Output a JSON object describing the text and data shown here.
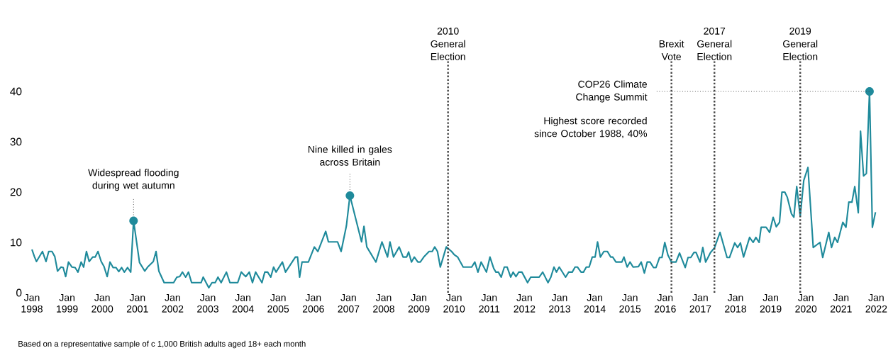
{
  "chart_data": {
    "type": "line",
    "x": [
      "1998-01-01",
      "1998-01-26",
      "1998-02-17",
      "1998-04-19",
      "1998-05-25",
      "1998-06-23",
      "1998-07-26",
      "1998-08-25",
      "1998-09-23",
      "1998-10-29",
      "1998-11-21",
      "1998-12-16",
      "1999-01-15",
      "1999-02-21",
      "1999-03-23",
      "1999-04-22",
      "1999-05-25",
      "1999-06-20",
      "1999-07-19",
      "1999-08-17",
      "1999-09-23",
      "1999-10-19",
      "1999-11-17",
      "1999-12-20",
      "2000-01-19",
      "2000-02-21",
      "2000-03-20",
      "2000-04-22",
      "2000-05-21",
      "2000-06-20",
      "2000-07-19",
      "2000-08-17",
      "2000-09-20",
      "2000-10-22",
      "2000-11-21",
      "2001-01-22",
      "2001-03-16",
      "2001-04-15",
      "2001-06-13",
      "2001-07-11",
      "2001-08-10",
      "2001-10-04",
      "2002-01-11",
      "2002-02-14",
      "2002-03-13",
      "2002-04-11",
      "2002-05-14",
      "2002-06-13",
      "2002-07-15",
      "2002-10-22",
      "2002-11-14",
      "2003-01-11",
      "2003-02-14",
      "2003-03-16",
      "2003-04-15",
      "2003-05-17",
      "2003-07-11",
      "2003-08-17",
      "2003-11-07",
      "2003-12-13",
      "2004-01-29",
      "2004-03-05",
      "2004-04-08",
      "2004-05-10",
      "2004-07-15",
      "2004-08-14",
      "2004-09-13",
      "2004-10-15",
      "2004-11-14",
      "2004-12-09",
      "2005-02-14",
      "2005-03-16",
      "2005-06-27",
      "2005-07-19",
      "2005-08-10",
      "2005-09-05",
      "2005-11-10",
      "2006-01-11",
      "2006-02-17",
      "2006-05-07",
      "2006-06-05",
      "2006-09-09",
      "2006-10-15",
      "2006-12-09",
      "2007-01-15",
      "2007-05-14",
      "2007-06-09",
      "2007-07-08",
      "2007-10-11",
      "2007-12-13",
      "2008-02-10",
      "2008-03-05",
      "2008-04-11",
      "2008-06-09",
      "2008-07-19",
      "2008-08-25",
      "2008-09-16",
      "2008-10-15",
      "2008-11-14",
      "2008-12-20",
      "2009-01-15",
      "2009-02-21",
      "2009-04-15",
      "2009-05-17",
      "2009-06-13",
      "2009-07-11",
      "2009-08-10",
      "2009-10-11",
      "2009-12-05",
      "2010-01-01",
      "2010-02-07",
      "2010-04-04",
      "2010-07-01",
      "2010-08-03",
      "2010-09-05",
      "2010-10-08",
      "2010-12-02",
      "2011-01-08",
      "2011-02-17",
      "2011-03-09",
      "2011-04-04",
      "2011-05-03",
      "2011-06-05",
      "2011-07-04",
      "2011-08-10",
      "2011-09-05",
      "2011-10-04",
      "2011-11-03",
      "2011-12-05",
      "2012-02-03",
      "2012-03-05",
      "2012-06-02",
      "2012-07-08",
      "2012-09-02",
      "2012-10-01",
      "2012-11-03",
      "2012-11-28",
      "2012-12-27",
      "2013-03-02",
      "2013-04-04",
      "2013-05-10",
      "2013-06-09",
      "2013-07-04",
      "2013-08-10",
      "2013-09-05",
      "2013-10-04",
      "2013-11-03",
      "2013-12-05",
      "2014-01-04",
      "2014-01-29",
      "2014-02-28",
      "2014-04-04",
      "2014-05-10",
      "2014-06-13",
      "2014-07-04",
      "2014-08-07",
      "2014-10-08",
      "2014-10-29",
      "2014-12-02",
      "2015-01-01",
      "2015-02-03",
      "2015-03-27",
      "2015-04-26",
      "2015-05-28",
      "2015-06-27",
      "2015-07-26",
      "2015-09-02",
      "2015-09-27",
      "2015-11-03",
      "2015-11-28",
      "2015-12-27",
      "2016-01-29",
      "2016-03-05",
      "2016-04-22",
      "2016-05-28",
      "2016-07-26",
      "2016-08-25",
      "2016-09-23",
      "2016-10-26",
      "2016-11-17",
      "2016-12-27",
      "2017-01-26",
      "2017-02-25",
      "2017-04-15",
      "2017-05-25",
      "2017-07-22",
      "2017-10-04",
      "2017-10-29",
      "2017-12-23",
      "2018-01-22",
      "2018-02-21",
      "2018-03-23",
      "2018-05-25",
      "2018-07-01",
      "2018-07-29",
      "2018-09-02",
      "2018-09-23",
      "2018-11-14",
      "2018-12-20",
      "2019-01-26",
      "2019-02-28",
      "2019-04-01",
      "2019-04-26",
      "2019-05-25",
      "2019-06-20",
      "2019-08-03",
      "2019-08-28",
      "2019-09-27",
      "2019-11-03",
      "2019-12-09",
      "2020-01-22",
      "2020-03-16",
      "2020-05-25",
      "2020-06-23",
      "2020-08-25",
      "2020-09-23",
      "2020-10-26",
      "2020-11-25",
      "2021-01-19",
      "2021-02-21",
      "2021-03-20",
      "2021-04-22",
      "2021-05-21",
      "2021-06-27",
      "2021-07-20",
      "2021-08-21",
      "2021-09-20",
      "2021-10-22",
      "2021-11-21",
      "2021-12-23"
    ],
    "series": [
      {
        "color": "#1f8a9b",
        "values": [
          8.6,
          7.2,
          6.2,
          8.2,
          6.2,
          8.2,
          8.2,
          7.2,
          4.3,
          5.1,
          5,
          3.2,
          6.1,
          5.1,
          5,
          4.1,
          6.1,
          5.1,
          8.2,
          6.2,
          7.1,
          7.1,
          8.2,
          6.2,
          5.2,
          3.2,
          6.1,
          5,
          5,
          4.2,
          5,
          4.1,
          5,
          4.1,
          14.3,
          6,
          4.3,
          5.1,
          6.2,
          8.2,
          4.3,
          2,
          2,
          3.1,
          3.2,
          4.1,
          3.1,
          4.1,
          2,
          2,
          3.1,
          1,
          2,
          2,
          3.1,
          2,
          4.1,
          2,
          2,
          4.1,
          3.2,
          4.1,
          2,
          4.1,
          2,
          4.1,
          4.1,
          3.1,
          5.1,
          4.1,
          6.1,
          4.1,
          7.1,
          7.1,
          3.1,
          6.1,
          6.1,
          9.1,
          8.2,
          12.2,
          10.1,
          10.1,
          8.2,
          13.3,
          19.3,
          10.1,
          13.2,
          9.1,
          6.1,
          10.1,
          7.1,
          10.1,
          7.1,
          9.1,
          7.1,
          7.1,
          8.1,
          6.1,
          7.1,
          6.1,
          6.1,
          7.1,
          8.2,
          8.2,
          9.1,
          8.2,
          5.1,
          9.1,
          8.2,
          7.6,
          7.1,
          5.1,
          5.1,
          6.1,
          4.1,
          6.1,
          4.1,
          7.1,
          4.8,
          4.1,
          4.1,
          3.1,
          5.1,
          5.1,
          3.1,
          4.1,
          3.2,
          4.1,
          4.1,
          2,
          3.1,
          3.1,
          4.1,
          2,
          3.1,
          5.1,
          4.1,
          5.1,
          3.1,
          4.1,
          4.1,
          5.1,
          5.1,
          4.1,
          4.1,
          5.1,
          5.1,
          7.1,
          7.1,
          10.1,
          7.1,
          8.2,
          8.2,
          7.1,
          7.1,
          6.1,
          6.1,
          7.1,
          5.1,
          6.1,
          5.1,
          5.2,
          6.1,
          3.9,
          6.1,
          6.1,
          5,
          5,
          7,
          7,
          10,
          7.5,
          6.1,
          6.1,
          7.9,
          5,
          7,
          7,
          8,
          8,
          6.1,
          9,
          6.1,
          8,
          8.9,
          12,
          7,
          7,
          9.9,
          9,
          9.9,
          7.1,
          11,
          10,
          11,
          10,
          13,
          13,
          12,
          15,
          13.1,
          14,
          20,
          20,
          19,
          15.7,
          15,
          21.1,
          15.2,
          22.3,
          24.9,
          9,
          10,
          7,
          12,
          9,
          11,
          10,
          14,
          13,
          18,
          18,
          21.1,
          15.9,
          32.1,
          23.2,
          23.7,
          40,
          13,
          16
        ]
      }
    ],
    "xlim": [
      "1998-01-01",
      "2022-01-01"
    ],
    "ylim": [
      0,
      46
    ],
    "xticks": [
      {
        "value": "1998-01",
        "label": "Jan 1998"
      },
      {
        "value": "1999-01",
        "label": "Jan 1999"
      },
      {
        "value": "2000-01",
        "label": "Jan 2000"
      },
      {
        "value": "2001-01",
        "label": "Jan 2001"
      },
      {
        "value": "2002-01",
        "label": "Jan 2002"
      },
      {
        "value": "2003-01",
        "label": "Jan 2003"
      },
      {
        "value": "2004-01",
        "label": "Jan 2004"
      },
      {
        "value": "2005-01",
        "label": "Jan 2005"
      },
      {
        "value": "2006-01",
        "label": "Jan 2006"
      },
      {
        "value": "2007-01",
        "label": "Jan 2007"
      },
      {
        "value": "2008-01",
        "label": "Jan 2008"
      },
      {
        "value": "2009-01",
        "label": "Jan 2009"
      },
      {
        "value": "2010-01",
        "label": "Jan 2010"
      },
      {
        "value": "2011-01",
        "label": "Jan 2011"
      },
      {
        "value": "2012-01",
        "label": "Jan 2012"
      },
      {
        "value": "2013-01",
        "label": "Jan 2013"
      },
      {
        "value": "2014-01",
        "label": "Jan 2014"
      },
      {
        "value": "2015-01",
        "label": "Jan 2015"
      },
      {
        "value": "2016-01",
        "label": "Jan 2016"
      },
      {
        "value": "2017-01",
        "label": "Jan 2017"
      },
      {
        "value": "2018-01",
        "label": "Jan 2018"
      },
      {
        "value": "2019-01",
        "label": "Jan 2019"
      },
      {
        "value": "2020-01",
        "label": "Jan 2020"
      },
      {
        "value": "2021-01",
        "label": "Jan 2021"
      },
      {
        "value": "2022-01",
        "label": "Jan 2022"
      }
    ],
    "yticks": [
      0,
      10,
      20,
      30,
      40
    ],
    "ref_lines": [
      {
        "axis": "x",
        "value": "2009-10-29",
        "label": "2010 General Election",
        "color": "#444444",
        "line_style": "dotted"
      },
      {
        "axis": "x",
        "value": "2016-03-05",
        "label": "Brexit Vote",
        "color": "#444444",
        "line_style": "dotted"
      },
      {
        "axis": "x",
        "value": "2017-05-25",
        "label": "2017 General Election",
        "color": "#444444",
        "line_style": "dotted"
      },
      {
        "axis": "x",
        "value": "2019-11-03",
        "label": "2019 General Election",
        "color": "#444444",
        "line_style": "dotted"
      }
    ],
    "annotations": [
      {
        "text": "Widespread flooding during wet autumn",
        "x": "2000-11-21",
        "y": 14.3
      },
      {
        "text": "Nine killed in gales across Britain",
        "x": "2007-01-15",
        "y": 19.3
      },
      {
        "text": "COP26 Climate Change Summit",
        "x": "2021-10-22",
        "y": 40
      },
      "Highest score recorded since October 1988, 40%",
      "Based on a representative sample of c 1,000 British adults aged 18+ each month"
    ]
  }
}
